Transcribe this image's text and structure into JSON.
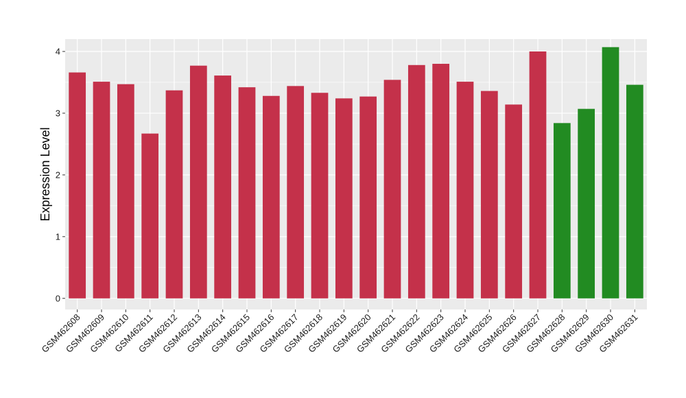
{
  "chart_data": {
    "type": "bar",
    "title": "",
    "xlabel": "",
    "ylabel": "Expression Level",
    "ylim": [
      -0.18,
      4.2
    ],
    "yticks": [
      0,
      1,
      2,
      3,
      4
    ],
    "grid": true,
    "categories": [
      "GSM462608",
      "GSM462609",
      "GSM462610",
      "GSM462611",
      "GSM462612",
      "GSM462613",
      "GSM462614",
      "GSM462615",
      "GSM462616",
      "GSM462617",
      "GSM462618",
      "GSM462619",
      "GSM462620",
      "GSM462621",
      "GSM462622",
      "GSM462623",
      "GSM462624",
      "GSM462625",
      "GSM462626",
      "GSM462627",
      "GSM462628",
      "GSM462629",
      "GSM462630",
      "GSM462631"
    ],
    "values": [
      3.66,
      3.51,
      3.47,
      2.67,
      3.37,
      3.77,
      3.61,
      3.42,
      3.28,
      3.44,
      3.33,
      3.24,
      3.27,
      3.54,
      3.78,
      3.8,
      3.51,
      3.36,
      3.14,
      4.0,
      2.84,
      3.07,
      4.07,
      3.46
    ],
    "group_colors": [
      "#C4314A",
      "#228B22"
    ],
    "bar_groups": [
      0,
      0,
      0,
      0,
      0,
      0,
      0,
      0,
      0,
      0,
      0,
      0,
      0,
      0,
      0,
      0,
      0,
      0,
      0,
      0,
      1,
      1,
      1,
      1
    ],
    "panel_background": "#EBEBEB",
    "gridline_color": "#FFFFFF"
  }
}
